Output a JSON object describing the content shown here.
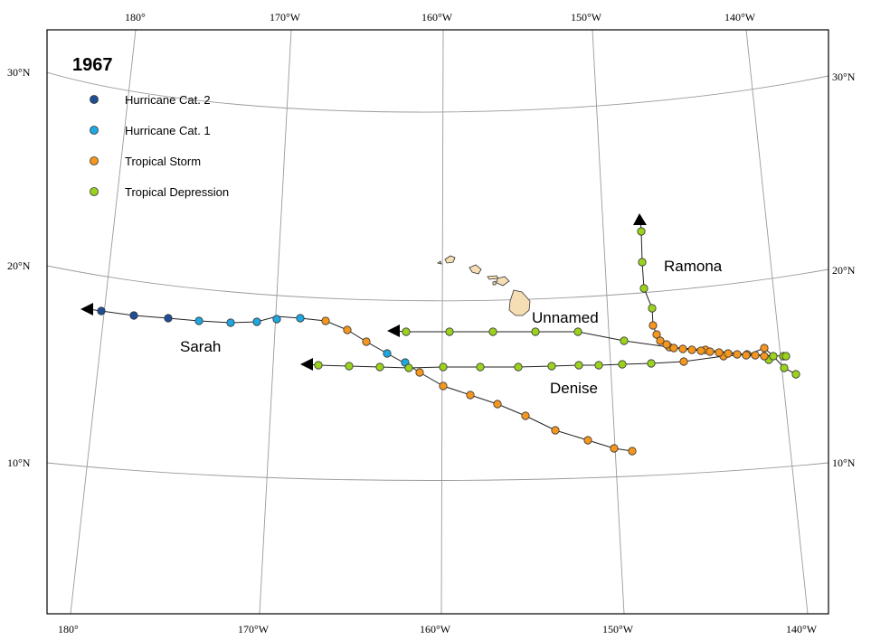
{
  "title": "1967",
  "colors": {
    "hurricane_cat2": "#1f4e96",
    "hurricane_cat1": "#1ea7e1",
    "tropical_storm": "#f5961e",
    "tropical_depression": "#9ad21e"
  },
  "legend": [
    {
      "label": "Hurricane Cat. 2",
      "color_key": "hurricane_cat2"
    },
    {
      "label": "Hurricane Cat. 1",
      "color_key": "hurricane_cat1"
    },
    {
      "label": "Tropical Storm",
      "color_key": "tropical_storm"
    },
    {
      "label": "Tropical Depression",
      "color_key": "tropical_depression"
    }
  ],
  "labels": {
    "top": [
      "180°",
      "170°W",
      "160°W",
      "150°W",
      "140°W"
    ],
    "bottom": [
      "180°",
      "170°W",
      "160°W",
      "150°W",
      "140°W"
    ],
    "left": [
      "30°N",
      "20°N",
      "10°N"
    ],
    "right": [
      "30°N",
      "20°N",
      "10°N"
    ]
  },
  "storms": [
    {
      "name": "Sarah"
    },
    {
      "name": "Unnamed"
    },
    {
      "name": "Denise"
    },
    {
      "name": "Ramona"
    }
  ]
}
